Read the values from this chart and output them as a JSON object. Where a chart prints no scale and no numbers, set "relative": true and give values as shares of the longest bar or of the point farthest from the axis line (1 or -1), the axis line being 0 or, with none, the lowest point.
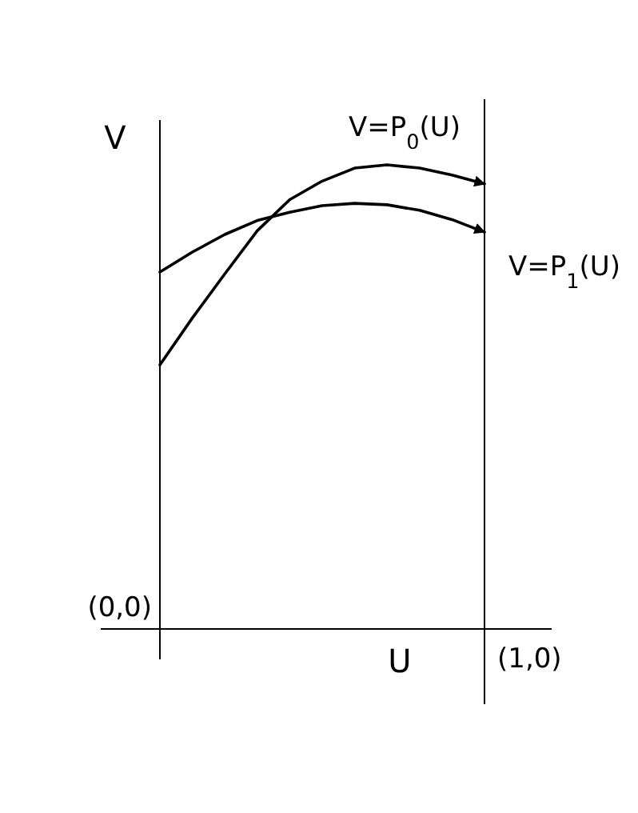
{
  "chart_data": {
    "type": "line",
    "relative": true,
    "xlabel": "U",
    "ylabel": "V",
    "marker": "none",
    "line_style": "solid",
    "categories": [
      null,
      null,
      null,
      null,
      null,
      null,
      null,
      null,
      null,
      null,
      null
    ],
    "series": [
      {
        "name": "V=P$_{0}$(U)",
        "color": "#000000",
        "values": [
          0.569,
          0.67,
          0.765,
          0.858,
          0.925,
          0.965,
          0.993,
          1.0,
          0.993,
          0.978,
          0.959
        ]
      },
      {
        "name": "V=P$_{1}$(U)",
        "color": "#000000",
        "values": [
          0.769,
          0.812,
          0.85,
          0.88,
          0.898,
          0.912,
          0.917,
          0.914,
          0.902,
          0.882,
          0.855
        ]
      }
    ],
    "annotations": [
      "(0,0)",
      "(1,0)"
    ]
  }
}
